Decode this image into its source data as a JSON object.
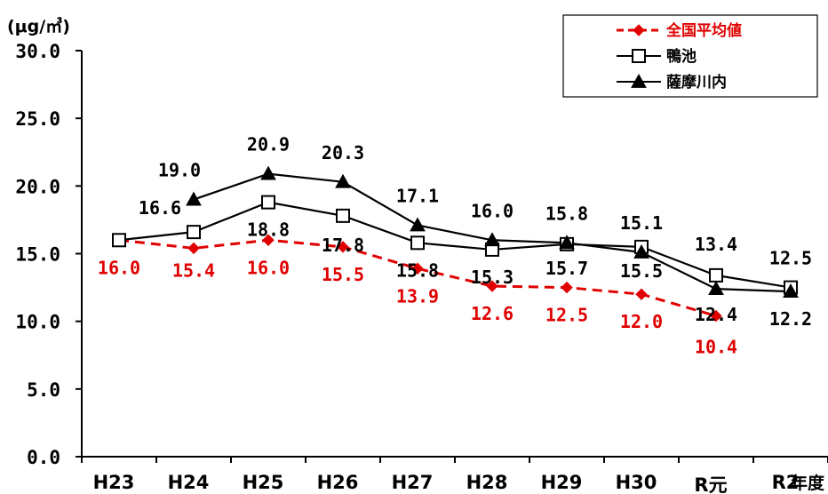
{
  "chart_data": {
    "type": "line",
    "ylabel": "(μg/㎥)",
    "xlabel": "年度",
    "ylim": [
      0,
      30
    ],
    "y_ticks": [
      "0.0",
      "5.0",
      "10.0",
      "15.0",
      "20.0",
      "25.0",
      "30.0"
    ],
    "categories": [
      "H23",
      "H24",
      "H25",
      "H26",
      "H27",
      "H28",
      "H29",
      "H30",
      "R元",
      "R2"
    ],
    "grid": false,
    "legend_position": "top-right",
    "series": [
      {
        "name": "全国平均値",
        "color": "#e00000",
        "marker": "diamond",
        "dashed": true,
        "values": [
          16.0,
          15.4,
          16.0,
          15.5,
          13.9,
          12.6,
          12.5,
          12.0,
          10.4,
          null
        ],
        "labels": [
          "16.0",
          "15.4",
          "16.0",
          "15.5",
          "13.9",
          "12.6",
          "12.5",
          "12.0",
          "10.4",
          ""
        ]
      },
      {
        "name": "鴨池",
        "color": "#000000",
        "marker": "square-open",
        "dashed": false,
        "values": [
          16.0,
          16.6,
          18.8,
          17.8,
          15.8,
          15.3,
          15.7,
          15.5,
          13.4,
          12.5
        ],
        "labels": [
          "",
          "16.6",
          "18.8",
          "17.8",
          "15.8",
          "15.3",
          "15.7",
          "15.5",
          "13.4",
          "12.5"
        ]
      },
      {
        "name": "薩摩川内",
        "color": "#000000",
        "marker": "triangle",
        "dashed": false,
        "values": [
          null,
          19.0,
          20.9,
          20.3,
          17.1,
          16.0,
          15.8,
          15.1,
          12.4,
          12.2
        ],
        "labels": [
          "",
          "19.0",
          "20.9",
          "20.3",
          "17.1",
          "16.0",
          "15.8",
          "15.1",
          "12.4",
          "12.2"
        ]
      }
    ]
  }
}
